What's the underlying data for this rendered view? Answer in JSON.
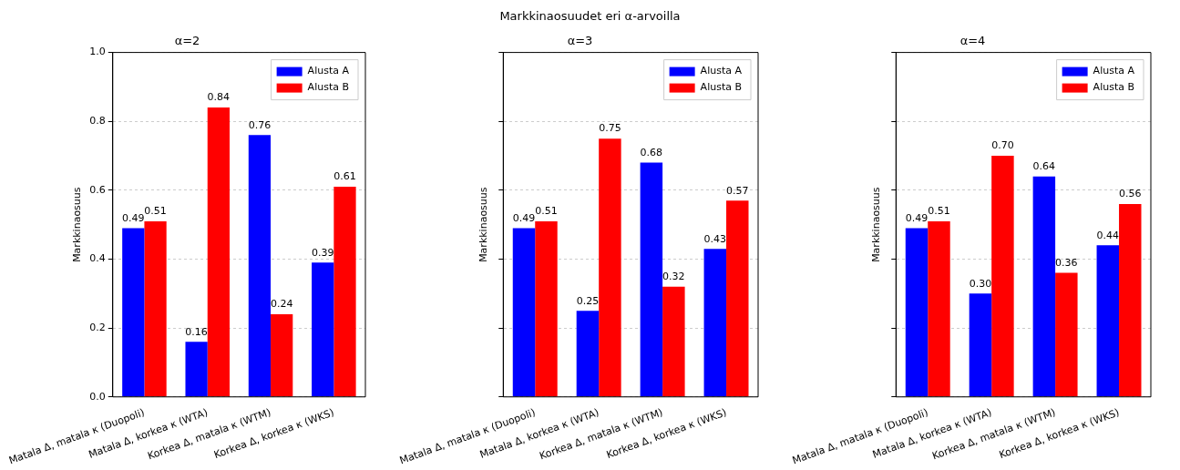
{
  "chart_data": [
    {
      "type": "bar",
      "title": "α=2",
      "annotations": [
        "Markkinaosuudet eri α-arvoilla"
      ],
      "ylabel": "Markkinaosuus",
      "categories": [
        "Matala Δ, matala κ (Duopoli)",
        "Matala Δ, korkea κ (WTA)",
        "Korkea Δ, matala κ (WTM)",
        "Korkea Δ, korkea κ (WKS)"
      ],
      "series": [
        {
          "name": "Alusta A",
          "color": "#0000ff",
          "values": [
            0.49,
            0.16,
            0.76,
            0.39
          ],
          "value_labels": [
            "0.49",
            "0.16",
            "0.76",
            "0.39"
          ]
        },
        {
          "name": "Alusta B",
          "color": "#ff0000",
          "values": [
            0.51,
            0.84,
            0.24,
            0.61
          ],
          "value_labels": [
            "0.51",
            "0.84",
            "0.24",
            "0.61"
          ]
        }
      ],
      "ylim": [
        0,
        1
      ],
      "yticks": [
        {
          "value": 0,
          "label": "0.0"
        },
        {
          "value": 0.2,
          "label": "0.2"
        },
        {
          "value": 0.4,
          "label": "0.4"
        },
        {
          "value": 0.6,
          "label": "0.6"
        },
        {
          "value": 0.8,
          "label": "0.8"
        },
        {
          "value": 1,
          "label": "1.0"
        }
      ],
      "grid": "y",
      "legend": "top right"
    },
    {
      "type": "bar",
      "title": "α=3",
      "ylabel": "Markkinaosuus",
      "categories": [
        "Matala Δ, matala κ (Duopoli)",
        "Matala Δ, korkea κ (WTA)",
        "Korkea Δ, matala κ (WTM)",
        "Korkea Δ, korkea κ (WKS)"
      ],
      "series": [
        {
          "name": "Alusta A",
          "color": "#0000ff",
          "values": [
            0.49,
            0.25,
            0.68,
            0.43
          ],
          "value_labels": [
            "0.49",
            "0.25",
            "0.68",
            "0.43"
          ]
        },
        {
          "name": "Alusta B",
          "color": "#ff0000",
          "values": [
            0.51,
            0.75,
            0.32,
            0.57
          ],
          "value_labels": [
            "0.51",
            "0.75",
            "0.32",
            "0.57"
          ]
        }
      ],
      "ylim": [
        0,
        1
      ],
      "yticks": [
        {
          "value": 0,
          "label": null
        },
        {
          "value": 0.2,
          "label": null
        },
        {
          "value": 0.4,
          "label": null
        },
        {
          "value": 0.6,
          "label": null
        },
        {
          "value": 0.8,
          "label": null
        },
        {
          "value": 1,
          "label": null
        }
      ],
      "grid": "y",
      "legend": "top right",
      "tick_labels": "x"
    },
    {
      "type": "bar",
      "title": "α=4",
      "ylabel": "Markkinaosuus",
      "categories": [
        "Matala Δ, matala κ (Duopoli)",
        "Matala Δ, korkea κ (WTA)",
        "Korkea Δ, matala κ (WTM)",
        "Korkea Δ, korkea κ (WKS)"
      ],
      "series": [
        {
          "name": "Alusta A",
          "color": "#0000ff",
          "values": [
            0.49,
            0.3,
            0.64,
            0.44
          ],
          "value_labels": [
            "0.49",
            "0.30",
            "0.64",
            "0.44"
          ]
        },
        {
          "name": "Alusta B",
          "color": "#ff0000",
          "values": [
            0.51,
            0.7,
            0.36,
            0.56
          ],
          "value_labels": [
            "0.51",
            "0.70",
            "0.36",
            "0.56"
          ]
        }
      ],
      "ylim": [
        0,
        1
      ],
      "yticks": [
        {
          "value": 0,
          "label": null
        },
        {
          "value": 0.2,
          "label": null
        },
        {
          "value": 0.4,
          "label": null
        },
        {
          "value": 0.6,
          "label": null
        },
        {
          "value": 0.8,
          "label": null
        },
        {
          "value": 1,
          "label": null
        }
      ],
      "grid": "y",
      "legend": "top right",
      "tick_labels": "x"
    }
  ]
}
